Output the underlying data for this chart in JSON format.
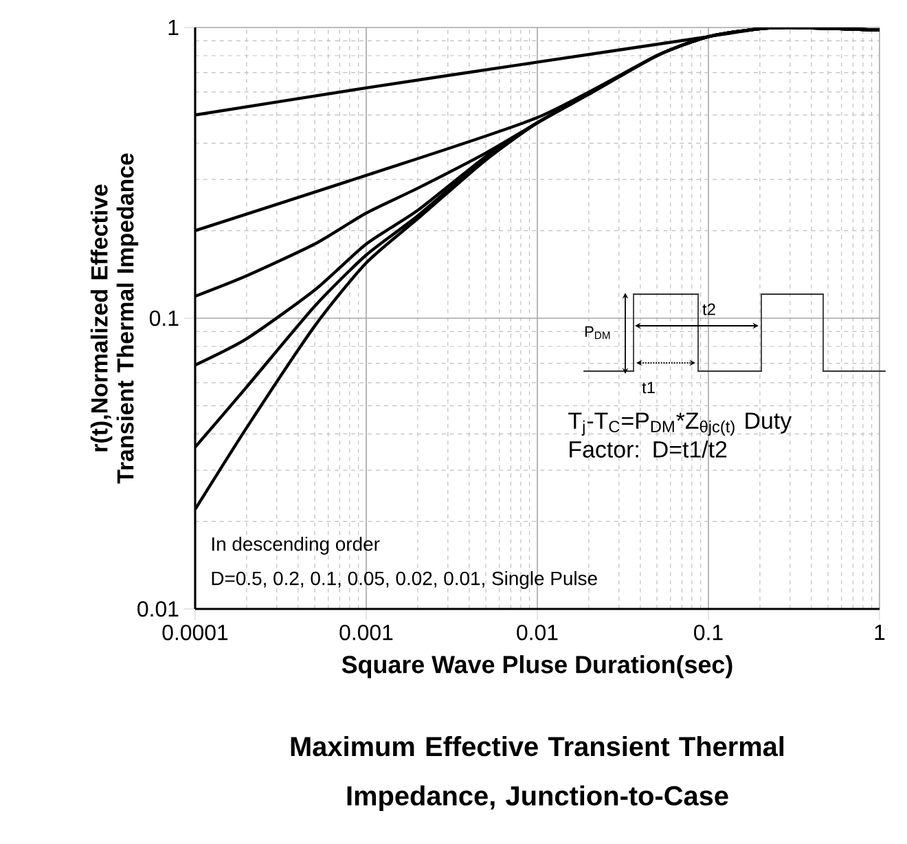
{
  "chart_data": {
    "type": "line",
    "title": "Maximum Effective Transient Thermal Impedance, Junction-to-Case",
    "xlabel": "Square Wave Pluse Duration(sec)",
    "ylabel": "r(t),Normalized Effective Transient Thermal Impedance",
    "log": "xy",
    "grid": true,
    "xlim": [
      0.0001,
      1
    ],
    "ylim": [
      0.01,
      1
    ],
    "xticks": [
      0.0001,
      0.001,
      0.01,
      0.1,
      1
    ],
    "yticks": [
      0.01,
      0.1,
      1
    ],
    "series": [
      {
        "color": "#000000",
        "x": [
          0.0001,
          0.001,
          0.01,
          0.1,
          0.2,
          0.3,
          1
        ],
        "values": [
          0.5,
          0.62,
          0.76,
          0.93,
          0.99,
          1.0,
          0.98
        ]
      },
      {
        "color": "#000000",
        "x": [
          0.0001,
          0.001,
          0.01,
          0.05,
          0.1,
          0.2,
          0.3,
          1
        ],
        "values": [
          0.2,
          0.31,
          0.49,
          0.8,
          0.93,
          0.99,
          1.0,
          0.98
        ]
      },
      {
        "color": "#000000",
        "x": [
          0.0001,
          0.0002,
          0.0005,
          0.001,
          0.002,
          0.005,
          0.01,
          0.02,
          0.05,
          0.1,
          0.2,
          0.3,
          1
        ],
        "values": [
          0.119,
          0.14,
          0.18,
          0.23,
          0.28,
          0.37,
          0.47,
          0.59,
          0.8,
          0.93,
          0.99,
          1.0,
          0.98
        ]
      },
      {
        "color": "#000000",
        "x": [
          0.0001,
          0.0002,
          0.0005,
          0.001,
          0.002,
          0.005,
          0.01,
          0.02,
          0.05,
          0.1,
          0.2,
          0.3,
          1
        ],
        "values": [
          0.069,
          0.085,
          0.125,
          0.18,
          0.235,
          0.36,
          0.47,
          0.59,
          0.8,
          0.93,
          0.99,
          1.0,
          0.98
        ]
      },
      {
        "color": "#000000",
        "x": [
          0.0001,
          0.0002,
          0.0005,
          0.001,
          0.002,
          0.005,
          0.01,
          0.02,
          0.05,
          0.1,
          0.2,
          0.3,
          1
        ],
        "values": [
          0.036,
          0.058,
          0.11,
          0.165,
          0.225,
          0.355,
          0.47,
          0.59,
          0.8,
          0.93,
          0.99,
          1.0,
          0.98
        ]
      },
      {
        "color": "#000000",
        "x": [
          0.0001,
          0.0002,
          0.0005,
          0.001,
          0.002,
          0.005,
          0.01,
          0.02,
          0.05,
          0.1,
          0.2,
          0.3,
          1
        ],
        "values": [
          0.022,
          0.042,
          0.094,
          0.155,
          0.22,
          0.35,
          0.47,
          0.59,
          0.8,
          0.93,
          0.99,
          1.0,
          0.98
        ]
      }
    ],
    "annotations": [
      "In descending order",
      "D=0.5, 0.2, 0.1, 0.05, 0.02, 0.01, Single Pulse",
      "T$_{j}$-T$_{C}$=P$_{DM}$*Z$_{θjc(t)}$ Duty Factor: D=t1/t2",
      "P$_{DM}$",
      "t1",
      "t2"
    ]
  }
}
